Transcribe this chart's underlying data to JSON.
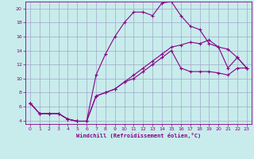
{
  "xlabel": "Windchill (Refroidissement éolien,°C)",
  "bg_color": "#c8ecec",
  "grid_color": "#a0a8c8",
  "line_color": "#880088",
  "xlim": [
    -0.5,
    23.5
  ],
  "ylim": [
    3.5,
    21.0
  ],
  "xticks": [
    0,
    1,
    2,
    3,
    4,
    5,
    6,
    7,
    8,
    9,
    10,
    11,
    12,
    13,
    14,
    15,
    16,
    17,
    18,
    19,
    20,
    21,
    22,
    23
  ],
  "yticks": [
    4,
    6,
    8,
    10,
    12,
    14,
    16,
    18,
    20
  ],
  "line1_x": [
    0,
    1,
    2,
    3,
    4,
    5,
    6,
    7,
    8,
    9,
    10,
    11,
    12,
    13,
    14,
    15,
    16,
    17,
    18,
    19,
    20,
    21,
    22,
    23
  ],
  "line1_y": [
    6.5,
    5.0,
    5.0,
    5.0,
    4.2,
    3.9,
    3.9,
    10.5,
    13.5,
    16.0,
    18.0,
    19.5,
    19.5,
    19.0,
    20.8,
    21.0,
    19.0,
    17.5,
    17.0,
    15.0,
    14.5,
    11.5,
    13.0,
    11.5
  ],
  "line2_x": [
    0,
    1,
    2,
    3,
    4,
    5,
    6,
    7,
    8,
    9,
    10,
    11,
    12,
    13,
    14,
    15,
    16,
    17,
    18,
    19,
    20,
    21,
    22,
    23
  ],
  "line2_y": [
    6.5,
    5.0,
    5.0,
    5.0,
    4.2,
    3.9,
    3.9,
    7.5,
    8.0,
    8.5,
    9.5,
    10.5,
    11.5,
    12.5,
    13.5,
    14.5,
    14.8,
    15.2,
    15.0,
    15.5,
    14.5,
    14.2,
    13.0,
    11.5
  ],
  "line3_x": [
    0,
    1,
    2,
    3,
    4,
    5,
    6,
    7,
    8,
    9,
    10,
    11,
    12,
    13,
    14,
    15,
    16,
    17,
    18,
    19,
    20,
    21,
    22,
    23
  ],
  "line3_y": [
    6.5,
    5.0,
    5.0,
    5.0,
    4.2,
    3.9,
    3.9,
    7.5,
    8.0,
    8.5,
    9.5,
    10.0,
    11.0,
    12.0,
    13.0,
    14.0,
    11.5,
    11.0,
    11.0,
    11.0,
    10.8,
    10.5,
    11.5,
    11.5
  ]
}
